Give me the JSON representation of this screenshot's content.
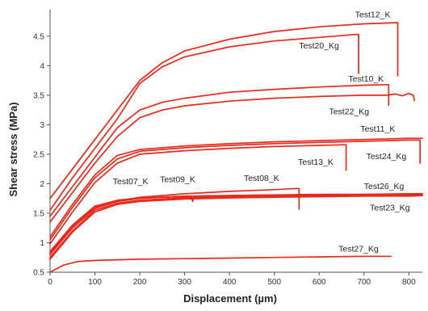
{
  "chart_data": {
    "type": "line",
    "title": "",
    "xlabel": "Displacement (µm)",
    "ylabel": "Shear stress (MPa)",
    "xlim": [
      0,
      830
    ],
    "ylim": [
      0.5,
      4.95
    ],
    "x_ticks": [
      0,
      100,
      200,
      300,
      400,
      500,
      600,
      700,
      800
    ],
    "y_ticks": [
      0.5,
      1,
      1.5,
      2,
      2.5,
      3,
      3.5,
      4,
      4.5
    ],
    "grid": false,
    "legend": "none (series labelled directly on the plot)",
    "line_color": "#e8291c",
    "series": [
      {
        "name": "Test12_K",
        "x": [
          0,
          50,
          100,
          150,
          200,
          250,
          300,
          400,
          500,
          600,
          700,
          770,
          775,
          775
        ],
        "y": [
          1.75,
          2.25,
          2.75,
          3.25,
          3.75,
          4.05,
          4.25,
          4.45,
          4.58,
          4.66,
          4.71,
          4.73,
          4.73,
          3.83
        ]
      },
      {
        "name": "Test20_Kg",
        "x": [
          0,
          50,
          100,
          150,
          200,
          250,
          300,
          400,
          500,
          600,
          680,
          688,
          688
        ],
        "y": [
          1.55,
          2.1,
          2.6,
          3.1,
          3.7,
          3.98,
          4.15,
          4.32,
          4.42,
          4.48,
          4.53,
          4.53,
          3.87
        ]
      },
      {
        "name": "Test10_K",
        "x": [
          0,
          50,
          100,
          150,
          200,
          250,
          300,
          400,
          500,
          600,
          700,
          750,
          755,
          755
        ],
        "y": [
          1.45,
          1.95,
          2.45,
          2.95,
          3.25,
          3.38,
          3.45,
          3.55,
          3.6,
          3.64,
          3.67,
          3.68,
          3.68,
          3.33
        ]
      },
      {
        "name": "Test22_Kg",
        "x": [
          0,
          50,
          100,
          150,
          200,
          250,
          300,
          400,
          500,
          600,
          700,
          750,
          770,
          785,
          800,
          810,
          812
        ],
        "y": [
          1.35,
          1.85,
          2.35,
          2.8,
          3.12,
          3.25,
          3.32,
          3.4,
          3.45,
          3.48,
          3.5,
          3.5,
          3.52,
          3.49,
          3.53,
          3.5,
          3.41
        ]
      },
      {
        "name": "Test11_K",
        "x": [
          0,
          50,
          100,
          150,
          200,
          300,
          400,
          500,
          600,
          700,
          800,
          830
        ],
        "y": [
          1.1,
          1.65,
          2.15,
          2.48,
          2.58,
          2.64,
          2.68,
          2.71,
          2.73,
          2.75,
          2.77,
          2.77
        ]
      },
      {
        "name": "Test24_Kg",
        "x": [
          0,
          50,
          100,
          150,
          200,
          300,
          400,
          500,
          600,
          700,
          800,
          825,
          825
        ],
        "y": [
          1.05,
          1.6,
          2.1,
          2.42,
          2.55,
          2.61,
          2.65,
          2.68,
          2.7,
          2.72,
          2.74,
          2.74,
          2.35
        ]
      },
      {
        "name": "Test13_K",
        "x": [
          0,
          50,
          100,
          150,
          200,
          300,
          400,
          500,
          600,
          655,
          660,
          660
        ],
        "y": [
          0.98,
          1.52,
          2.02,
          2.35,
          2.5,
          2.56,
          2.6,
          2.63,
          2.65,
          2.66,
          2.66,
          2.23
        ]
      },
      {
        "name": "Test07_K",
        "x": [
          0,
          50,
          100,
          150,
          200,
          300,
          400,
          500,
          600,
          700,
          800,
          830
        ],
        "y": [
          0.85,
          1.3,
          1.62,
          1.72,
          1.76,
          1.79,
          1.8,
          1.81,
          1.82,
          1.82,
          1.83,
          1.83
        ]
      },
      {
        "name": "Test09_K",
        "x": [
          0,
          50,
          100,
          150,
          200,
          260,
          270,
          280,
          300,
          315,
          318,
          321,
          330,
          400,
          500,
          600,
          700,
          800,
          830
        ],
        "y": [
          0.82,
          1.27,
          1.6,
          1.7,
          1.75,
          1.77,
          1.75,
          1.77,
          1.78,
          1.78,
          1.7,
          1.78,
          1.79,
          1.8,
          1.81,
          1.81,
          1.82,
          1.82,
          1.82
        ]
      },
      {
        "name": "Test08_K",
        "x": [
          0,
          50,
          100,
          150,
          200,
          300,
          400,
          500,
          550,
          555,
          555
        ],
        "y": [
          0.8,
          1.25,
          1.58,
          1.7,
          1.77,
          1.83,
          1.87,
          1.9,
          1.92,
          1.92,
          1.57
        ]
      },
      {
        "name": "Test26_Kg",
        "x": [
          0,
          50,
          100,
          150,
          200,
          300,
          400,
          500,
          600,
          700,
          800,
          830
        ],
        "y": [
          0.75,
          1.2,
          1.55,
          1.67,
          1.72,
          1.76,
          1.78,
          1.79,
          1.8,
          1.8,
          1.81,
          1.81
        ]
      },
      {
        "name": "Test23_Kg",
        "x": [
          0,
          50,
          100,
          150,
          200,
          300,
          400,
          500,
          600,
          700,
          800,
          830
        ],
        "y": [
          0.72,
          1.18,
          1.52,
          1.65,
          1.7,
          1.74,
          1.76,
          1.77,
          1.78,
          1.79,
          1.79,
          1.8
        ]
      },
      {
        "name": "Test27_Kg",
        "x": [
          0,
          30,
          60,
          100,
          200,
          300,
          400,
          500,
          600,
          700,
          760
        ],
        "y": [
          0.5,
          0.62,
          0.68,
          0.7,
          0.72,
          0.73,
          0.74,
          0.75,
          0.76,
          0.77,
          0.77
        ]
      }
    ],
    "annotations": [
      {
        "text": "Test12_K",
        "x": 680,
        "y": 4.82
      },
      {
        "text": "Test20_Kg",
        "x": 555,
        "y": 4.29
      },
      {
        "text": "Test10_K",
        "x": 665,
        "y": 3.73
      },
      {
        "text": "Test22_Kg",
        "x": 622,
        "y": 3.18
      },
      {
        "text": "Test11_K",
        "x": 692,
        "y": 2.88
      },
      {
        "text": "Test13_K",
        "x": 553,
        "y": 2.32
      },
      {
        "text": "Test24_Kg",
        "x": 705,
        "y": 2.42
      },
      {
        "text": "Test07_K",
        "x": 140,
        "y": 1.99
      },
      {
        "text": "Test09_K",
        "x": 245,
        "y": 2.03
      },
      {
        "text": "Test08_K",
        "x": 432,
        "y": 2.05
      },
      {
        "text": "Test26_Kg",
        "x": 700,
        "y": 1.91
      },
      {
        "text": "Test23_Kg",
        "x": 713,
        "y": 1.55
      },
      {
        "text": "Test27_Kg",
        "x": 643,
        "y": 0.85
      }
    ]
  }
}
